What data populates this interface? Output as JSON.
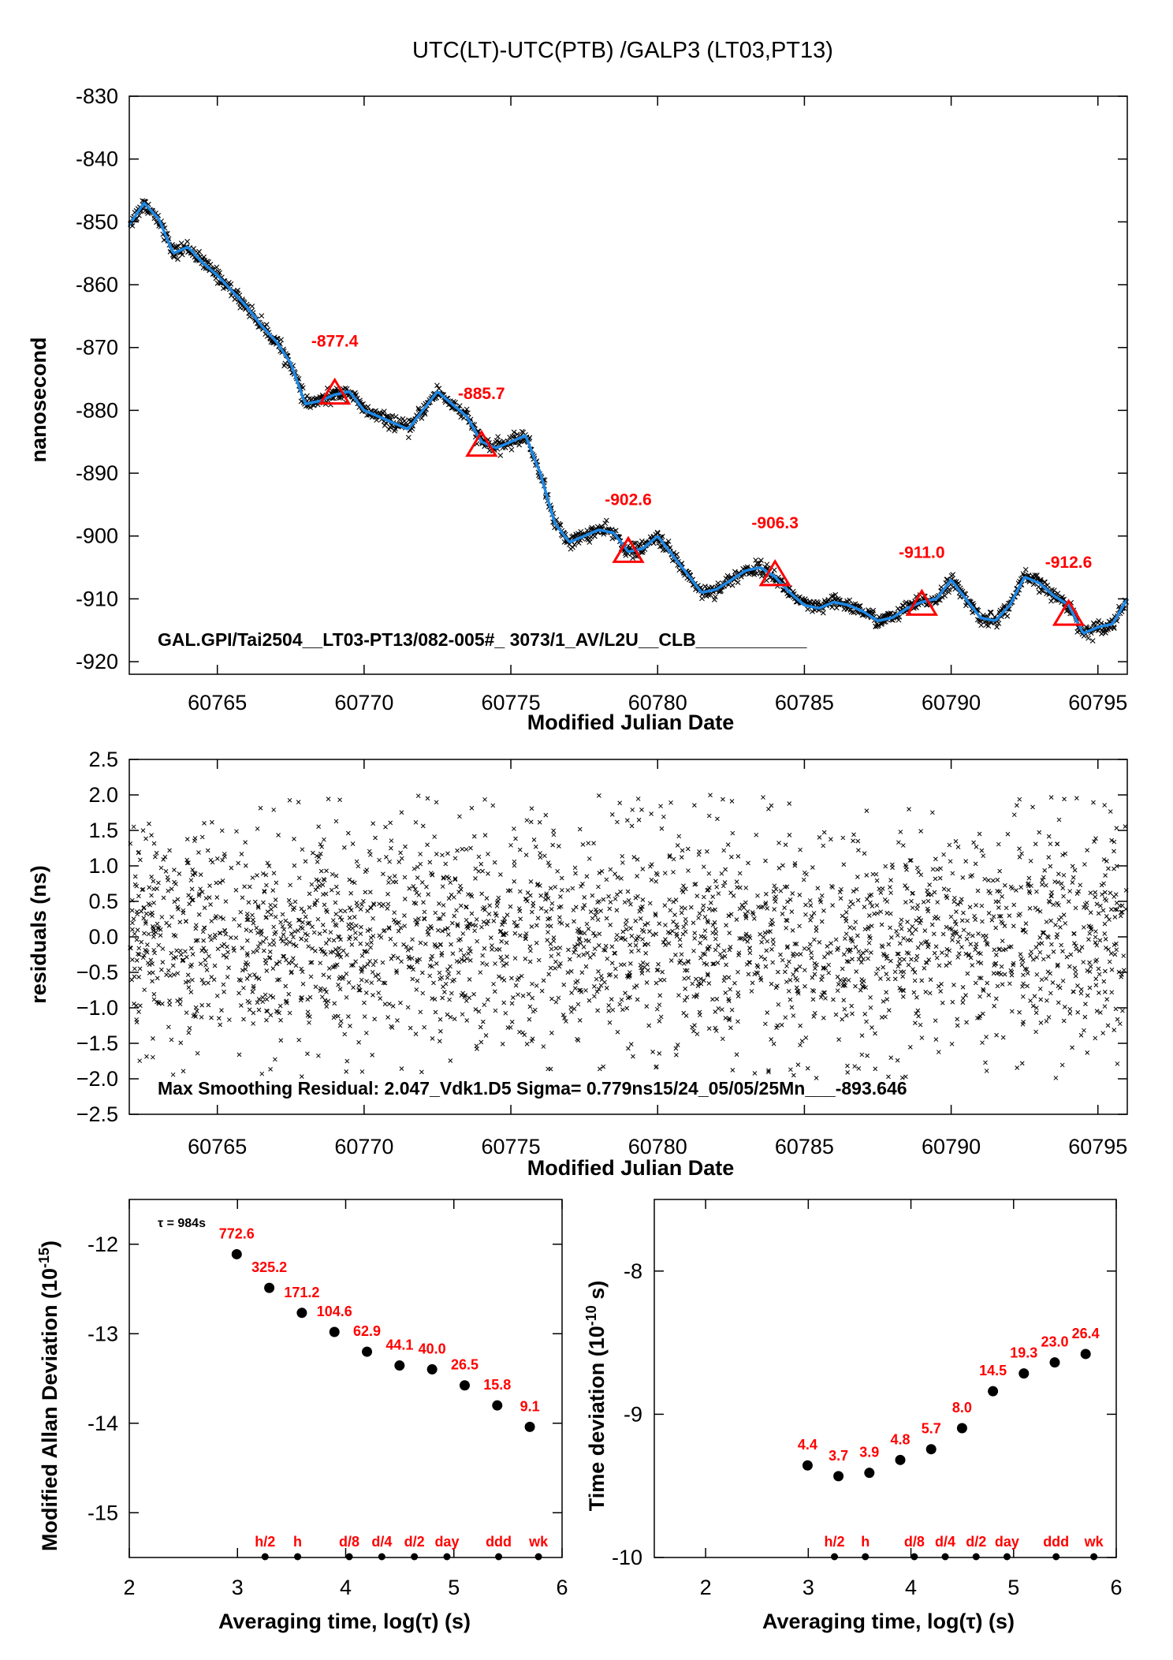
{
  "chart_data": [
    {
      "type": "scatter",
      "title": "UTC(LT)-UTC(PTB)  /GALP3  (LT03,PT13)",
      "xlabel": "Modified Julian Date",
      "ylabel": "nanosecond",
      "xlim": [
        60762,
        60796
      ],
      "ylim": [
        -922,
        -830
      ],
      "xticks": [
        60765,
        60770,
        60775,
        60780,
        60785,
        60790,
        60795
      ],
      "yticks": [
        -920,
        -910,
        -900,
        -890,
        -880,
        -870,
        -860,
        -850,
        -840,
        -830
      ],
      "smooth_curve": {
        "x": [
          60762.0,
          60762.5,
          60763.0,
          60763.5,
          60764.0,
          60764.5,
          60765.0,
          60765.5,
          60766.0,
          60766.5,
          60767.0,
          60767.5,
          60768.0,
          60768.5,
          60769.0,
          60769.5,
          60770.0,
          60770.5,
          60771.0,
          60771.5,
          60772.0,
          60772.5,
          60773.0,
          60773.5,
          60774.0,
          60774.5,
          60775.0,
          60775.5,
          60776.0,
          60776.5,
          60777.0,
          60777.5,
          60778.0,
          60778.5,
          60779.0,
          60779.5,
          60780.0,
          60780.5,
          60781.0,
          60781.5,
          60782.0,
          60782.5,
          60783.0,
          60783.5,
          60784.0,
          60784.5,
          60785.0,
          60785.5,
          60786.0,
          60786.5,
          60787.0,
          60787.5,
          60788.0,
          60788.5,
          60789.0,
          60789.5,
          60790.0,
          60790.5,
          60791.0,
          60791.5,
          60792.0,
          60792.5,
          60793.0,
          60793.5,
          60794.0,
          60794.5,
          60795.0,
          60795.5,
          60796.0
        ],
        "y": [
          -850.5,
          -847.0,
          -849.5,
          -855.0,
          -854.0,
          -856.5,
          -858.5,
          -861.0,
          -863.5,
          -866.5,
          -869.0,
          -872.5,
          -879.0,
          -878.5,
          -877.5,
          -877.0,
          -880.0,
          -881.0,
          -882.0,
          -883.0,
          -880.0,
          -877.0,
          -879.0,
          -881.0,
          -885.0,
          -886.0,
          -885.0,
          -884.0,
          -890.0,
          -898.0,
          -901.0,
          -900.0,
          -899.0,
          -899.5,
          -902.5,
          -902.0,
          -900.0,
          -903.0,
          -906.0,
          -909.0,
          -908.5,
          -907.0,
          -905.5,
          -905.0,
          -906.5,
          -909.0,
          -911.0,
          -911.5,
          -910.5,
          -911.0,
          -912.0,
          -913.5,
          -913.0,
          -911.5,
          -910.5,
          -910.0,
          -907.0,
          -910.0,
          -913.0,
          -913.5,
          -911.0,
          -906.5,
          -907.5,
          -909.5,
          -911.0,
          -915.5,
          -914.5,
          -914.0,
          -910.0
        ]
      },
      "markers": [
        {
          "x": 60769,
          "y": -877.4,
          "label": "-877.4"
        },
        {
          "x": 60774,
          "y": -885.7,
          "label": "-885.7"
        },
        {
          "x": 60779,
          "y": -902.6,
          "label": "-902.6"
        },
        {
          "x": 60784,
          "y": -906.3,
          "label": "-906.3"
        },
        {
          "x": 60789,
          "y": -911.0,
          "label": "-911.0"
        },
        {
          "x": 60794,
          "y": -912.6,
          "label": "-912.6"
        }
      ],
      "annotation": "GAL.GPI/Tai2504__LT03-PT13/082-005#_  3073/1_AV/L2U__CLB___________"
    },
    {
      "type": "scatter",
      "xlabel": "Modified Julian Date",
      "ylabel": "residuals (ns)",
      "xlim": [
        60762,
        60796
      ],
      "ylim": [
        -2.5,
        2.5
      ],
      "xticks": [
        60765,
        60770,
        60775,
        60780,
        60785,
        60790,
        60795
      ],
      "yticks": [
        -2.5,
        -2.0,
        -1.5,
        -1.0,
        -0.5,
        0.0,
        0.5,
        1.0,
        1.5,
        2.0,
        2.5
      ],
      "ytick_labels": [
        "−2.5",
        "−2.0",
        "−1.5",
        "−1.0",
        "−0.5",
        "0.0",
        "0.5",
        "1.0",
        "1.5",
        "2.0",
        "2.5"
      ],
      "max_residual": 2.047,
      "sigma_ns": 0.779,
      "mean": -893.646,
      "annotation": "Max Smoothing Residual: 2.047_Vdk1.D5  Sigma= 0.779ns15/24_05/05/25Mn___-893.646"
    },
    {
      "type": "scatter",
      "xlabel": "Averaging time, log(τ) (s)",
      "ylabel": "Modified Allan Deviation (10^-15)",
      "ylabel_main": "Modified Allan Deviation (10",
      "ylabel_sup": "-15",
      "ylabel_end": ")",
      "xlim": [
        2,
        6
      ],
      "ylim": [
        -15.5,
        -11.5
      ],
      "xticks": [
        2,
        3,
        4,
        5,
        6
      ],
      "yticks": [
        -15,
        -14,
        -13,
        -12
      ],
      "tau_note": "τ = 984s",
      "x": [
        2.993,
        3.294,
        3.595,
        3.896,
        4.197,
        4.498,
        4.799,
        5.1,
        5.401,
        5.702
      ],
      "y": [
        -12.112,
        -12.488,
        -12.767,
        -12.98,
        -13.201,
        -13.355,
        -13.398,
        -13.577,
        -13.801,
        -14.041
      ],
      "point_labels": [
        "772.6",
        "325.2",
        "171.2",
        "104.6",
        "62.9",
        "44.1",
        "40.0",
        "26.5",
        "15.8",
        "9.1"
      ],
      "interval_markers": [
        {
          "x": 3.255,
          "label": "h/2"
        },
        {
          "x": 3.556,
          "label": "h"
        },
        {
          "x": 4.033,
          "label": "d/8"
        },
        {
          "x": 4.334,
          "label": "d/4"
        },
        {
          "x": 4.635,
          "label": "d/2"
        },
        {
          "x": 4.936,
          "label": "day"
        },
        {
          "x": 5.414,
          "label": "ddd"
        },
        {
          "x": 5.782,
          "label": "wk"
        }
      ]
    },
    {
      "type": "scatter",
      "xlabel": "Averaging time, log(τ) (s)",
      "ylabel": "Time deviation (10^-10 s)",
      "ylabel_main": "Time deviation (10",
      "ylabel_sup": "-10",
      "ylabel_end": " s)",
      "xlim": [
        1.5,
        6
      ],
      "ylim": [
        -10,
        -7.5
      ],
      "xticks": [
        2,
        3,
        4,
        5,
        6
      ],
      "yticks": [
        -10,
        -9,
        -8
      ],
      "x": [
        2.993,
        3.294,
        3.595,
        3.896,
        4.197,
        4.498,
        4.799,
        5.1,
        5.401,
        5.702
      ],
      "y": [
        -9.357,
        -9.432,
        -9.409,
        -9.319,
        -9.244,
        -9.097,
        -8.839,
        -8.715,
        -8.638,
        -8.579
      ],
      "point_labels": [
        "4.4",
        "3.7",
        "3.9",
        "4.8",
        "5.7",
        "8.0",
        "14.5",
        "19.3",
        "23.0",
        "26.4"
      ],
      "interval_markers": [
        {
          "x": 3.255,
          "label": "h/2"
        },
        {
          "x": 3.556,
          "label": "h"
        },
        {
          "x": 4.033,
          "label": "d/8"
        },
        {
          "x": 4.334,
          "label": "d/4"
        },
        {
          "x": 4.635,
          "label": "d/2"
        },
        {
          "x": 4.936,
          "label": "day"
        },
        {
          "x": 5.414,
          "label": "ddd"
        },
        {
          "x": 5.782,
          "label": "wk"
        }
      ]
    }
  ],
  "colors": {
    "data_points": "#000000",
    "smooth_curve": "#1e88e5",
    "markers": "#ff0000",
    "labels": "#ff0000"
  }
}
